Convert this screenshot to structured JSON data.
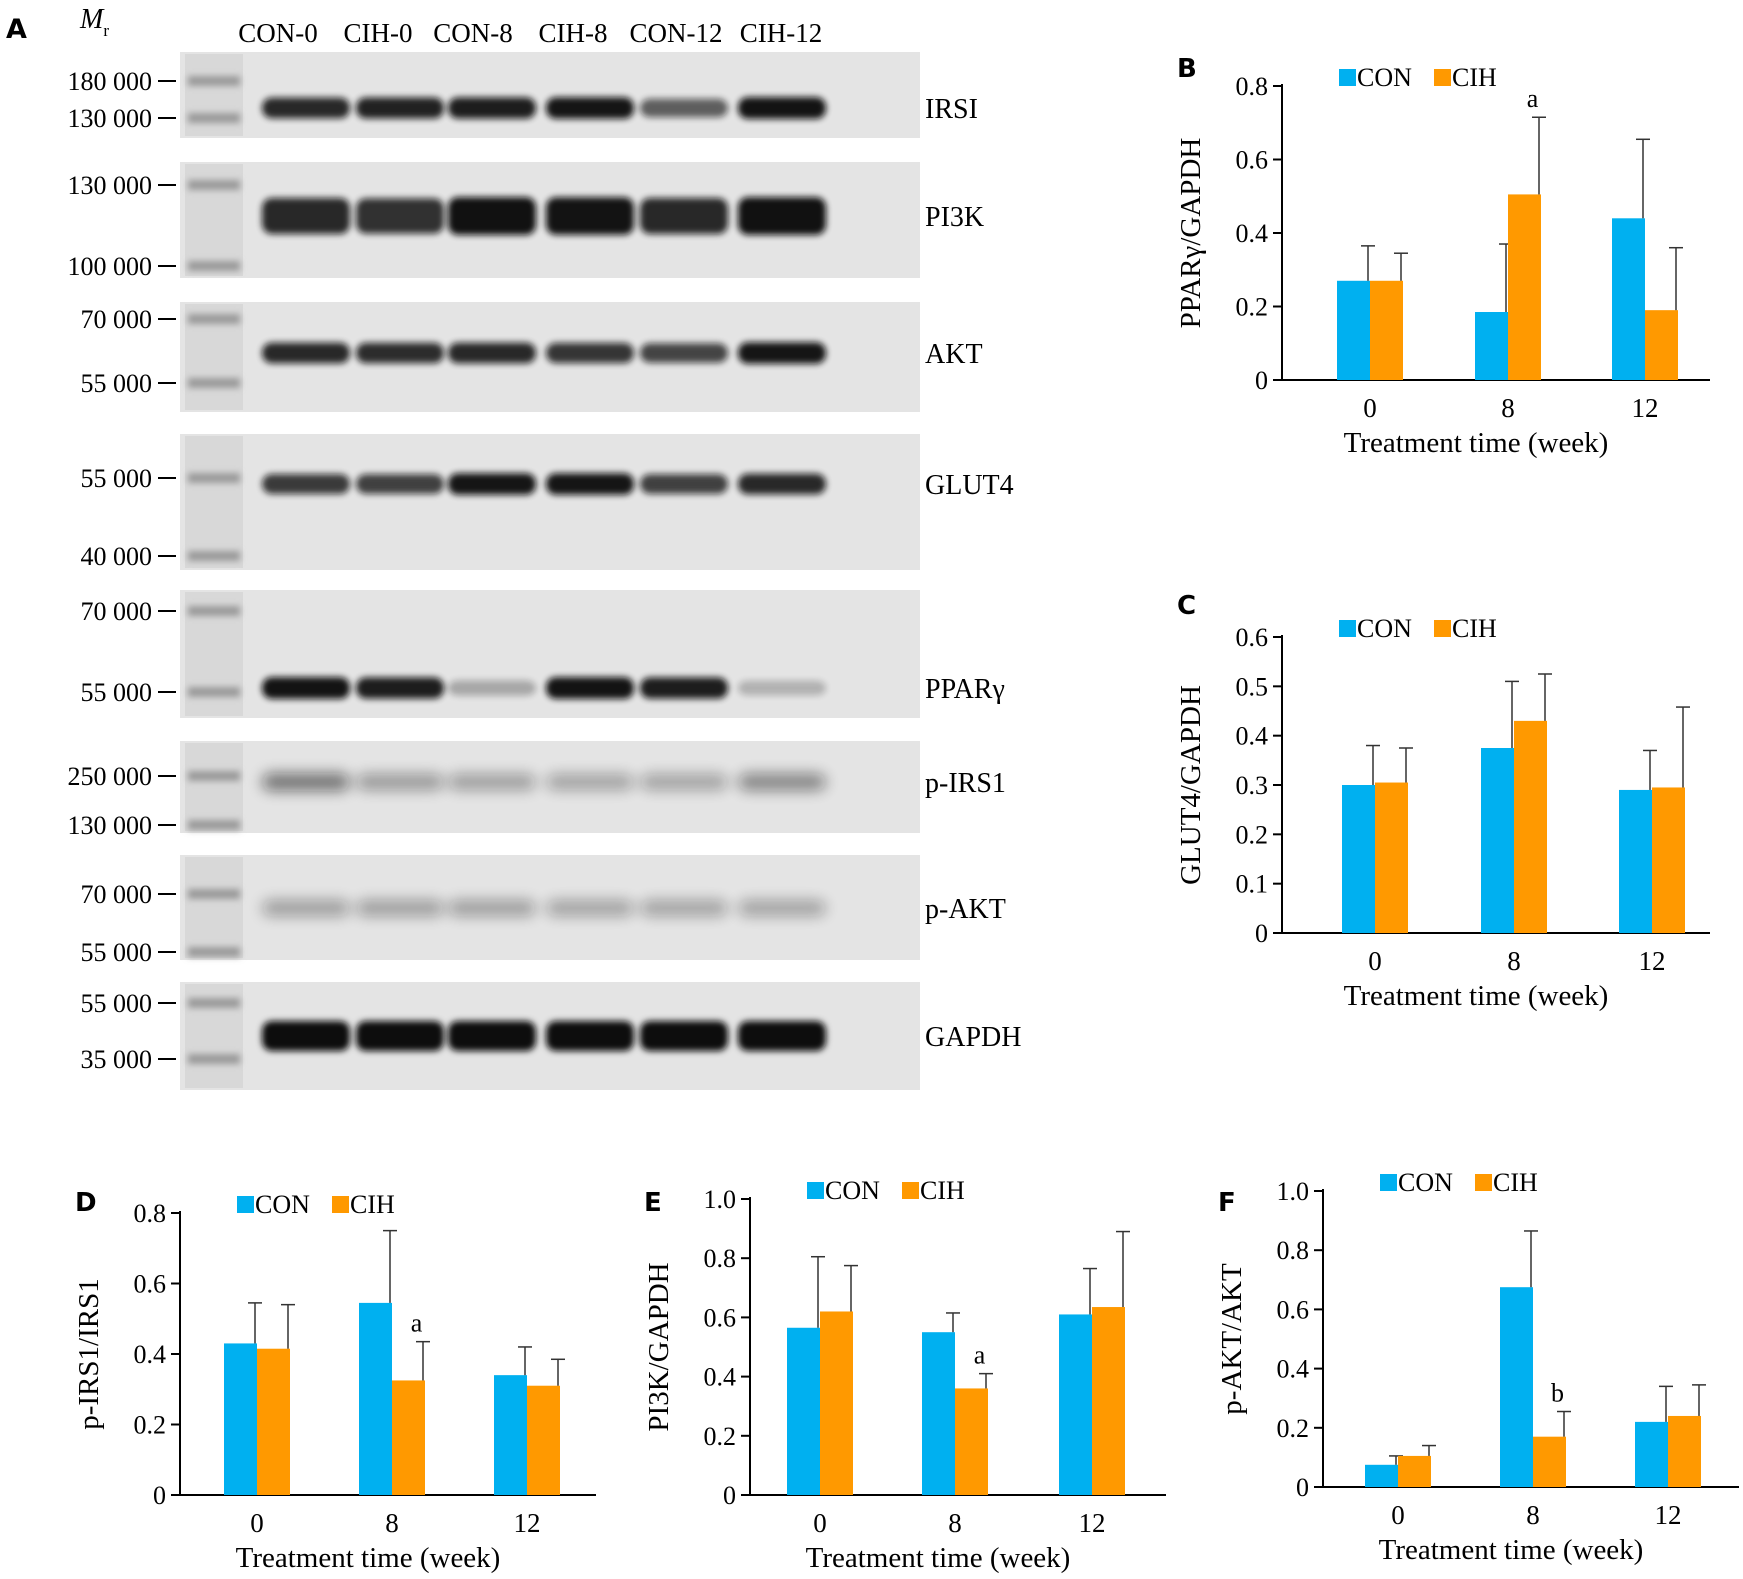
{
  "colors": {
    "con": "#00b0f0",
    "cih": "#ff9900",
    "axis": "#000000",
    "blot_bg": "#e4e4e4",
    "band": "#111111"
  },
  "blot": {
    "panel_label": "A",
    "mr_label_italic": "M",
    "mr_label_sub": "r",
    "lanes": [
      "CON-0",
      "CIH-0",
      "CON-8",
      "CIH-8",
      "CON-12",
      "CIH-12"
    ],
    "strips": [
      {
        "protein": "IRSI",
        "markers": [
          "180 000",
          "130 000"
        ],
        "intensity": [
          0.85,
          0.88,
          0.9,
          0.95,
          0.55,
          0.97
        ]
      },
      {
        "protein": "PI3K",
        "markers": [
          "130 000",
          "100 000"
        ],
        "intensity": [
          0.85,
          0.8,
          0.98,
          0.97,
          0.85,
          0.98
        ]
      },
      {
        "protein": "AKT",
        "markers": [
          "70 000",
          "55 000"
        ],
        "intensity": [
          0.85,
          0.82,
          0.85,
          0.78,
          0.7,
          0.95
        ]
      },
      {
        "protein": "GLUT4",
        "markers": [
          "55 000",
          "40 000"
        ],
        "intensity": [
          0.75,
          0.72,
          0.95,
          0.95,
          0.72,
          0.85
        ]
      },
      {
        "protein": "PPARγ",
        "markers": [
          "70 000",
          "55 000"
        ],
        "intensity": [
          0.97,
          0.9,
          0.15,
          0.97,
          0.9,
          0.1
        ]
      },
      {
        "protein": "p-IRS1",
        "markers": [
          "250 000",
          "130 000"
        ],
        "intensity": [
          0.45,
          0.25,
          0.22,
          0.2,
          0.2,
          0.35
        ]
      },
      {
        "protein": "p-AKT",
        "markers": [
          "70 000",
          "55 000"
        ],
        "intensity": [
          0.22,
          0.22,
          0.22,
          0.2,
          0.2,
          0.2
        ]
      },
      {
        "protein": "GAPDH",
        "markers": [
          "55 000",
          "35 000"
        ],
        "intensity": [
          1,
          1,
          1,
          1,
          1,
          1
        ]
      }
    ]
  },
  "chart_data": [
    {
      "panel": "B",
      "type": "bar",
      "categories": [
        "0",
        "8",
        "12"
      ],
      "series": [
        {
          "name": "CON",
          "values": [
            0.27,
            0.185,
            0.44
          ],
          "errors": [
            0.095,
            0.185,
            0.215
          ]
        },
        {
          "name": "CIH",
          "values": [
            0.27,
            0.505,
            0.19
          ],
          "errors": [
            0.075,
            0.21,
            0.17
          ]
        }
      ],
      "annotations": [
        {
          "category": "8",
          "series": "CIH",
          "text": "a"
        }
      ],
      "xlabel": "Treatment time (week)",
      "ylabel": "PPARγ/GAPDH",
      "ylim": [
        0,
        0.8
      ],
      "yticks": [
        "0",
        "0.2",
        "0.4",
        "0.6",
        "0.8"
      ],
      "legend": "top-left"
    },
    {
      "panel": "C",
      "type": "bar",
      "categories": [
        "0",
        "8",
        "12"
      ],
      "series": [
        {
          "name": "CON",
          "values": [
            0.3,
            0.375,
            0.29
          ],
          "errors": [
            0.08,
            0.135,
            0.08
          ]
        },
        {
          "name": "CIH",
          "values": [
            0.305,
            0.43,
            0.295
          ],
          "errors": [
            0.07,
            0.095,
            0.163
          ]
        }
      ],
      "annotations": [],
      "xlabel": "Treatment time (week)",
      "ylabel": "GLUT4/GAPDH",
      "ylim": [
        0,
        0.6
      ],
      "yticks": [
        "0",
        "0.1",
        "0.2",
        "0.3",
        "0.4",
        "0.5",
        "0.6"
      ],
      "legend": "top-left"
    },
    {
      "panel": "D",
      "type": "bar",
      "categories": [
        "0",
        "8",
        "12"
      ],
      "series": [
        {
          "name": "CON",
          "values": [
            0.43,
            0.545,
            0.34
          ],
          "errors": [
            0.115,
            0.205,
            0.08
          ]
        },
        {
          "name": "CIH",
          "values": [
            0.415,
            0.325,
            0.31
          ],
          "errors": [
            0.125,
            0.11,
            0.075
          ]
        }
      ],
      "annotations": [
        {
          "category": "8",
          "series": "CIH",
          "text": "a"
        }
      ],
      "xlabel": "Treatment time (week)",
      "ylabel": "p-IRS1/IRS1",
      "ylim": [
        0,
        0.8
      ],
      "yticks": [
        "0",
        "0.2",
        "0.4",
        "0.6",
        "0.8"
      ],
      "legend": "top-left"
    },
    {
      "panel": "E",
      "type": "bar",
      "categories": [
        "0",
        "8",
        "12"
      ],
      "series": [
        {
          "name": "CON",
          "values": [
            0.565,
            0.55,
            0.61
          ],
          "errors": [
            0.24,
            0.065,
            0.155
          ]
        },
        {
          "name": "CIH",
          "values": [
            0.62,
            0.36,
            0.635
          ],
          "errors": [
            0.155,
            0.05,
            0.255
          ]
        }
      ],
      "annotations": [
        {
          "category": "8",
          "series": "CIH",
          "text": "a"
        }
      ],
      "xlabel": "Treatment time (week)",
      "ylabel": "PI3K/GAPDH",
      "ylim": [
        0,
        1.0
      ],
      "yticks": [
        "0",
        "0.2",
        "0.4",
        "0.6",
        "0.8",
        "1.0"
      ],
      "legend": "top-left"
    },
    {
      "panel": "F",
      "type": "bar",
      "categories": [
        "0",
        "8",
        "12"
      ],
      "series": [
        {
          "name": "CON",
          "values": [
            0.075,
            0.675,
            0.22
          ],
          "errors": [
            0.03,
            0.19,
            0.12
          ]
        },
        {
          "name": "CIH",
          "values": [
            0.105,
            0.17,
            0.24
          ],
          "errors": [
            0.035,
            0.085,
            0.105
          ]
        }
      ],
      "annotations": [
        {
          "category": "8",
          "series": "CIH",
          "text": "b"
        }
      ],
      "xlabel": "Treatment time (week)",
      "ylabel": "p-AKT/AKT",
      "ylim": [
        0,
        1.0
      ],
      "yticks": [
        "0",
        "0.2",
        "0.4",
        "0.6",
        "0.8",
        "1.0"
      ],
      "legend": "top-left"
    }
  ]
}
